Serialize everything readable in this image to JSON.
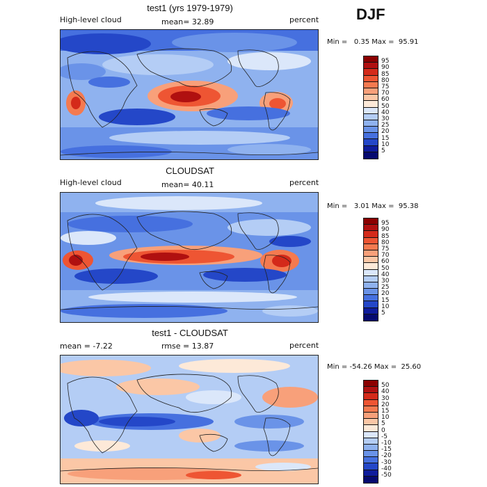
{
  "season": "DJF",
  "units_label": "percent",
  "panels": [
    {
      "title": "test1 (yrs 1979-1979)",
      "left_label": "High-level cloud",
      "stat_text": "mean=  32.89",
      "minmax_text": "Min =   0.35 Max =  95.91",
      "ticks": [
        "95",
        "90",
        "85",
        "80",
        "75",
        "70",
        "60",
        "50",
        "40",
        "30",
        "25",
        "20",
        "15",
        "10",
        "5"
      ],
      "colors": [
        "#8b0000",
        "#b01010",
        "#d42a1a",
        "#ee5533",
        "#f47a50",
        "#f8a07a",
        "#fbc7a6",
        "#fde9d8",
        "#dbe7fa",
        "#b4cdf5",
        "#8fb2ef",
        "#6a93e8",
        "#4670df",
        "#2447c8",
        "#0f1c9c",
        "#060a70"
      ]
    },
    {
      "title": "CLOUDSAT",
      "left_label": "High-level cloud",
      "stat_text": "mean=  40.11",
      "minmax_text": "Min =   3.01 Max =  95.38",
      "ticks": [
        "95",
        "90",
        "85",
        "80",
        "75",
        "70",
        "60",
        "50",
        "40",
        "30",
        "25",
        "20",
        "15",
        "10",
        "5"
      ],
      "colors": [
        "#8b0000",
        "#b01010",
        "#d42a1a",
        "#ee5533",
        "#f47a50",
        "#f8a07a",
        "#fbc7a6",
        "#fde9d8",
        "#dbe7fa",
        "#b4cdf5",
        "#8fb2ef",
        "#6a93e8",
        "#4670df",
        "#2447c8",
        "#0f1c9c",
        "#060a70"
      ]
    },
    {
      "title": "test1 - CLOUDSAT",
      "left_label": "mean =   -7.22",
      "stat_text": "rmse =  13.87",
      "minmax_text": "Min = -54.26 Max =  25.60",
      "ticks": [
        "50",
        "40",
        "30",
        "20",
        "15",
        "10",
        "5",
        "0",
        "-5",
        "-10",
        "-15",
        "-20",
        "-30",
        "-40",
        "-50"
      ],
      "colors": [
        "#8b0000",
        "#b01010",
        "#d42a1a",
        "#ee5533",
        "#f47a50",
        "#f8a07a",
        "#fbc7a6",
        "#fde9d8",
        "#dbe7fa",
        "#b4cdf5",
        "#8fb2ef",
        "#6a93e8",
        "#4670df",
        "#2447c8",
        "#0f1c9c",
        "#060a70"
      ]
    }
  ]
}
